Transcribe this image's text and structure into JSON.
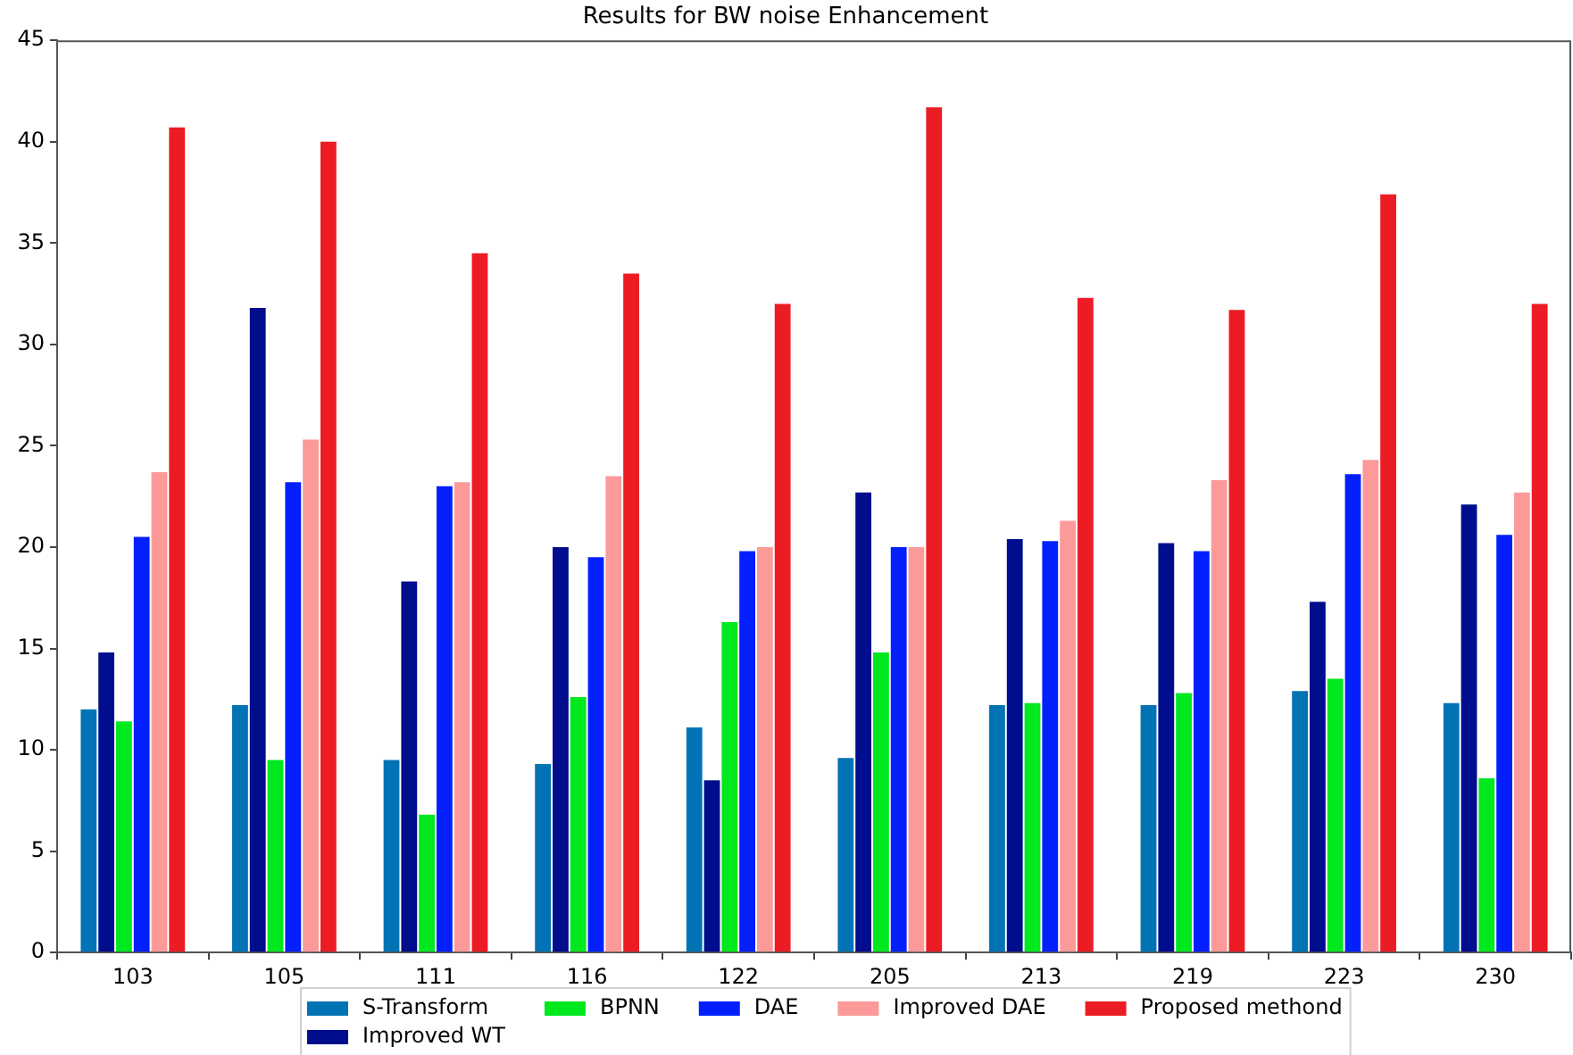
{
  "chart_data": {
    "type": "bar",
    "title": "Results for BW noise Enhancement",
    "categories": [
      "103",
      "105",
      "111",
      "116",
      "122",
      "205",
      "213",
      "219",
      "223",
      "230"
    ],
    "series": [
      {
        "name": "S-Transform",
        "color": "#0173b5",
        "values": [
          12.0,
          12.2,
          9.5,
          9.3,
          11.1,
          9.6,
          12.2,
          12.2,
          12.9,
          12.3
        ]
      },
      {
        "name": "Improved WT",
        "color": "#000d8c",
        "values": [
          14.8,
          31.8,
          18.3,
          20.0,
          8.5,
          22.7,
          20.4,
          20.2,
          17.3,
          22.1
        ]
      },
      {
        "name": "BPNN",
        "color": "#00e81e",
        "values": [
          11.4,
          9.5,
          6.8,
          12.6,
          16.3,
          14.8,
          12.3,
          12.8,
          13.5,
          8.6
        ]
      },
      {
        "name": "DAE",
        "color": "#0320fc",
        "values": [
          20.5,
          23.2,
          23.0,
          19.5,
          19.8,
          20.0,
          20.3,
          19.8,
          23.6,
          20.6
        ]
      },
      {
        "name": "Improved DAE",
        "color": "#fc9a9a",
        "values": [
          23.7,
          25.3,
          23.2,
          23.5,
          20.0,
          20.0,
          21.3,
          23.3,
          24.3,
          22.7
        ]
      },
      {
        "name": "Proposed methond",
        "color": "#ec1c24",
        "values": [
          40.7,
          40.0,
          34.5,
          33.5,
          32.0,
          41.7,
          32.3,
          31.7,
          37.4,
          32.0
        ]
      }
    ],
    "ylim": [
      0,
      45
    ],
    "yticks": [
      0,
      5,
      10,
      15,
      20,
      25,
      30,
      35,
      40,
      45
    ],
    "grid": false,
    "legend": "bottom"
  }
}
